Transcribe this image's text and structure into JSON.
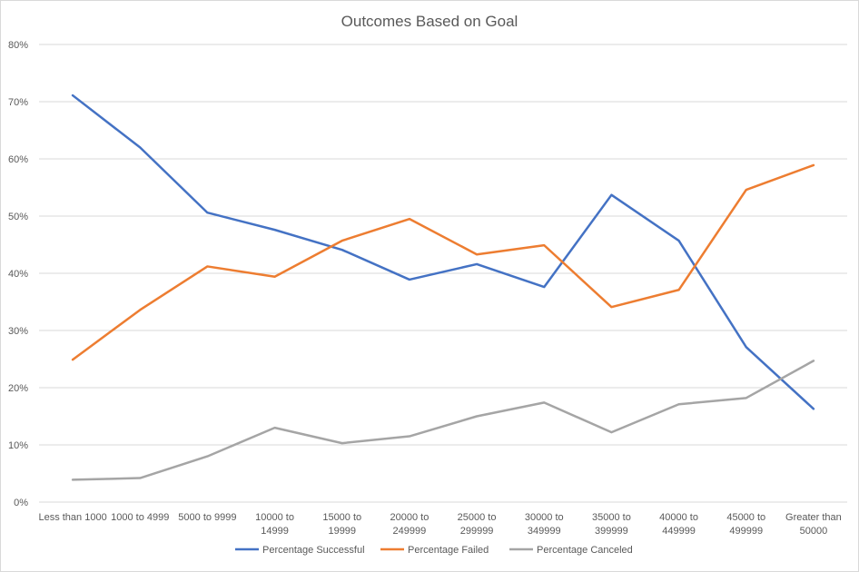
{
  "chart_data": {
    "type": "line",
    "title": "Outcomes Based on Goal",
    "categories": [
      "Less than 1000",
      "1000 to 4999",
      "5000 to 9999",
      "10000 to 14999",
      "15000 to 19999",
      "20000 to 249999",
      "25000 to 299999",
      "30000 to 349999",
      "35000 to 399999",
      "40000 to 449999",
      "45000 to 499999",
      "Greater than 50000"
    ],
    "category_lines": [
      [
        "Less than 1000"
      ],
      [
        "1000 to 4999"
      ],
      [
        "5000 to 9999"
      ],
      [
        "10000 to",
        "14999"
      ],
      [
        "15000 to",
        "19999"
      ],
      [
        "20000 to",
        "249999"
      ],
      [
        "25000 to",
        "299999"
      ],
      [
        "30000 to",
        "349999"
      ],
      [
        "35000 to",
        "399999"
      ],
      [
        "40000 to",
        "449999"
      ],
      [
        "45000 to",
        "499999"
      ],
      [
        "Greater than",
        "50000"
      ]
    ],
    "ylim": [
      0,
      80
    ],
    "yticks": [
      0,
      10,
      20,
      30,
      40,
      50,
      60,
      70,
      80
    ],
    "ytick_labels": [
      "0%",
      "10%",
      "20%",
      "30%",
      "40%",
      "50%",
      "60%",
      "70%",
      "80%"
    ],
    "grid": true,
    "legend_position": "bottom",
    "series": [
      {
        "name": "Percentage Successful",
        "color": "#4472c4",
        "values": [
          71.1,
          62.0,
          50.6,
          47.6,
          44.1,
          38.9,
          41.6,
          37.6,
          53.7,
          45.7,
          27.1,
          16.3
        ]
      },
      {
        "name": "Percentage Failed",
        "color": "#ed7d31",
        "values": [
          24.9,
          33.6,
          41.2,
          39.4,
          45.7,
          49.5,
          43.3,
          44.9,
          34.1,
          37.1,
          54.6,
          58.9
        ]
      },
      {
        "name": "Percentage Canceled",
        "color": "#a5a5a5",
        "values": [
          3.9,
          4.2,
          8.0,
          13.0,
          10.3,
          11.5,
          15.0,
          17.4,
          12.2,
          17.1,
          18.2,
          24.7
        ]
      }
    ]
  }
}
